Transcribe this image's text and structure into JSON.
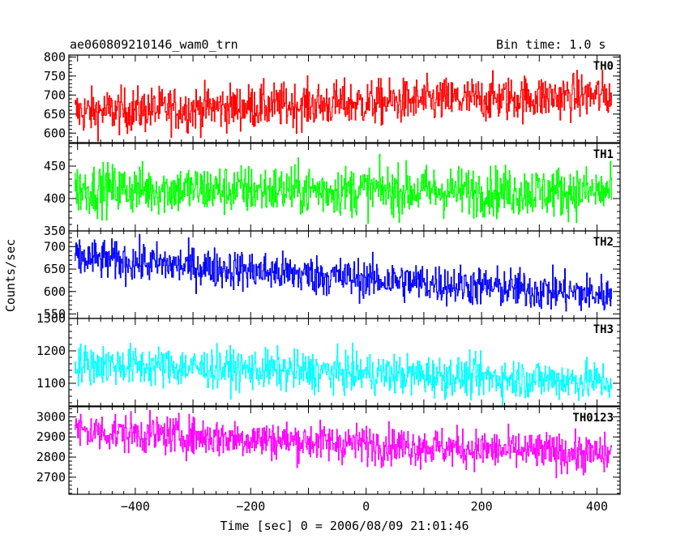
{
  "header": {
    "title": "ae060809210146_wam0_trn",
    "bin_time": "Bin time: 1.0 s"
  },
  "chart_data": {
    "type": "line",
    "xlabel": "Time [sec] 0 = 2006/08/09 21:01:46",
    "ylabel": "Counts/sec",
    "xlim": [
      -515,
      440
    ],
    "x_ticks": [
      -400,
      -200,
      0,
      200,
      400
    ],
    "x_range_data": [
      -505,
      425
    ],
    "panels": [
      {
        "name": "TH0",
        "color": "#ff0000",
        "ylim": [
          575,
          805
        ],
        "ticks": [
          600,
          650,
          700,
          750,
          800
        ],
        "trend": [
          [
            -505,
            655
          ],
          [
            425,
            700
          ]
        ],
        "noise": 40
      },
      {
        "name": "TH1",
        "color": "#00ff00",
        "ylim": [
          350,
          485
        ],
        "ticks": [
          350,
          400,
          450
        ],
        "trend": [
          [
            -505,
            415
          ],
          [
            425,
            410
          ]
        ],
        "noise": 26
      },
      {
        "name": "TH2",
        "color": "#0000ff",
        "ylim": [
          540,
          735
        ],
        "ticks": [
          550,
          600,
          650,
          700
        ],
        "trend": [
          [
            -505,
            675
          ],
          [
            0,
            628
          ],
          [
            425,
            592
          ]
        ],
        "noise": 30
      },
      {
        "name": "TH3",
        "color": "#00ffff",
        "ylim": [
          1030,
          1300
        ],
        "ticks": [
          1100,
          1200,
          1300
        ],
        "trend": [
          [
            -505,
            1160
          ],
          [
            425,
            1105
          ]
        ],
        "noise": 42
      },
      {
        "name": "TH0123",
        "color": "#ff00ff",
        "ylim": [
          2615,
          3050
        ],
        "ticks": [
          2700,
          2800,
          2900,
          3000
        ],
        "trend": [
          [
            -505,
            2930
          ],
          [
            425,
            2810
          ]
        ],
        "noise": 65
      }
    ]
  }
}
